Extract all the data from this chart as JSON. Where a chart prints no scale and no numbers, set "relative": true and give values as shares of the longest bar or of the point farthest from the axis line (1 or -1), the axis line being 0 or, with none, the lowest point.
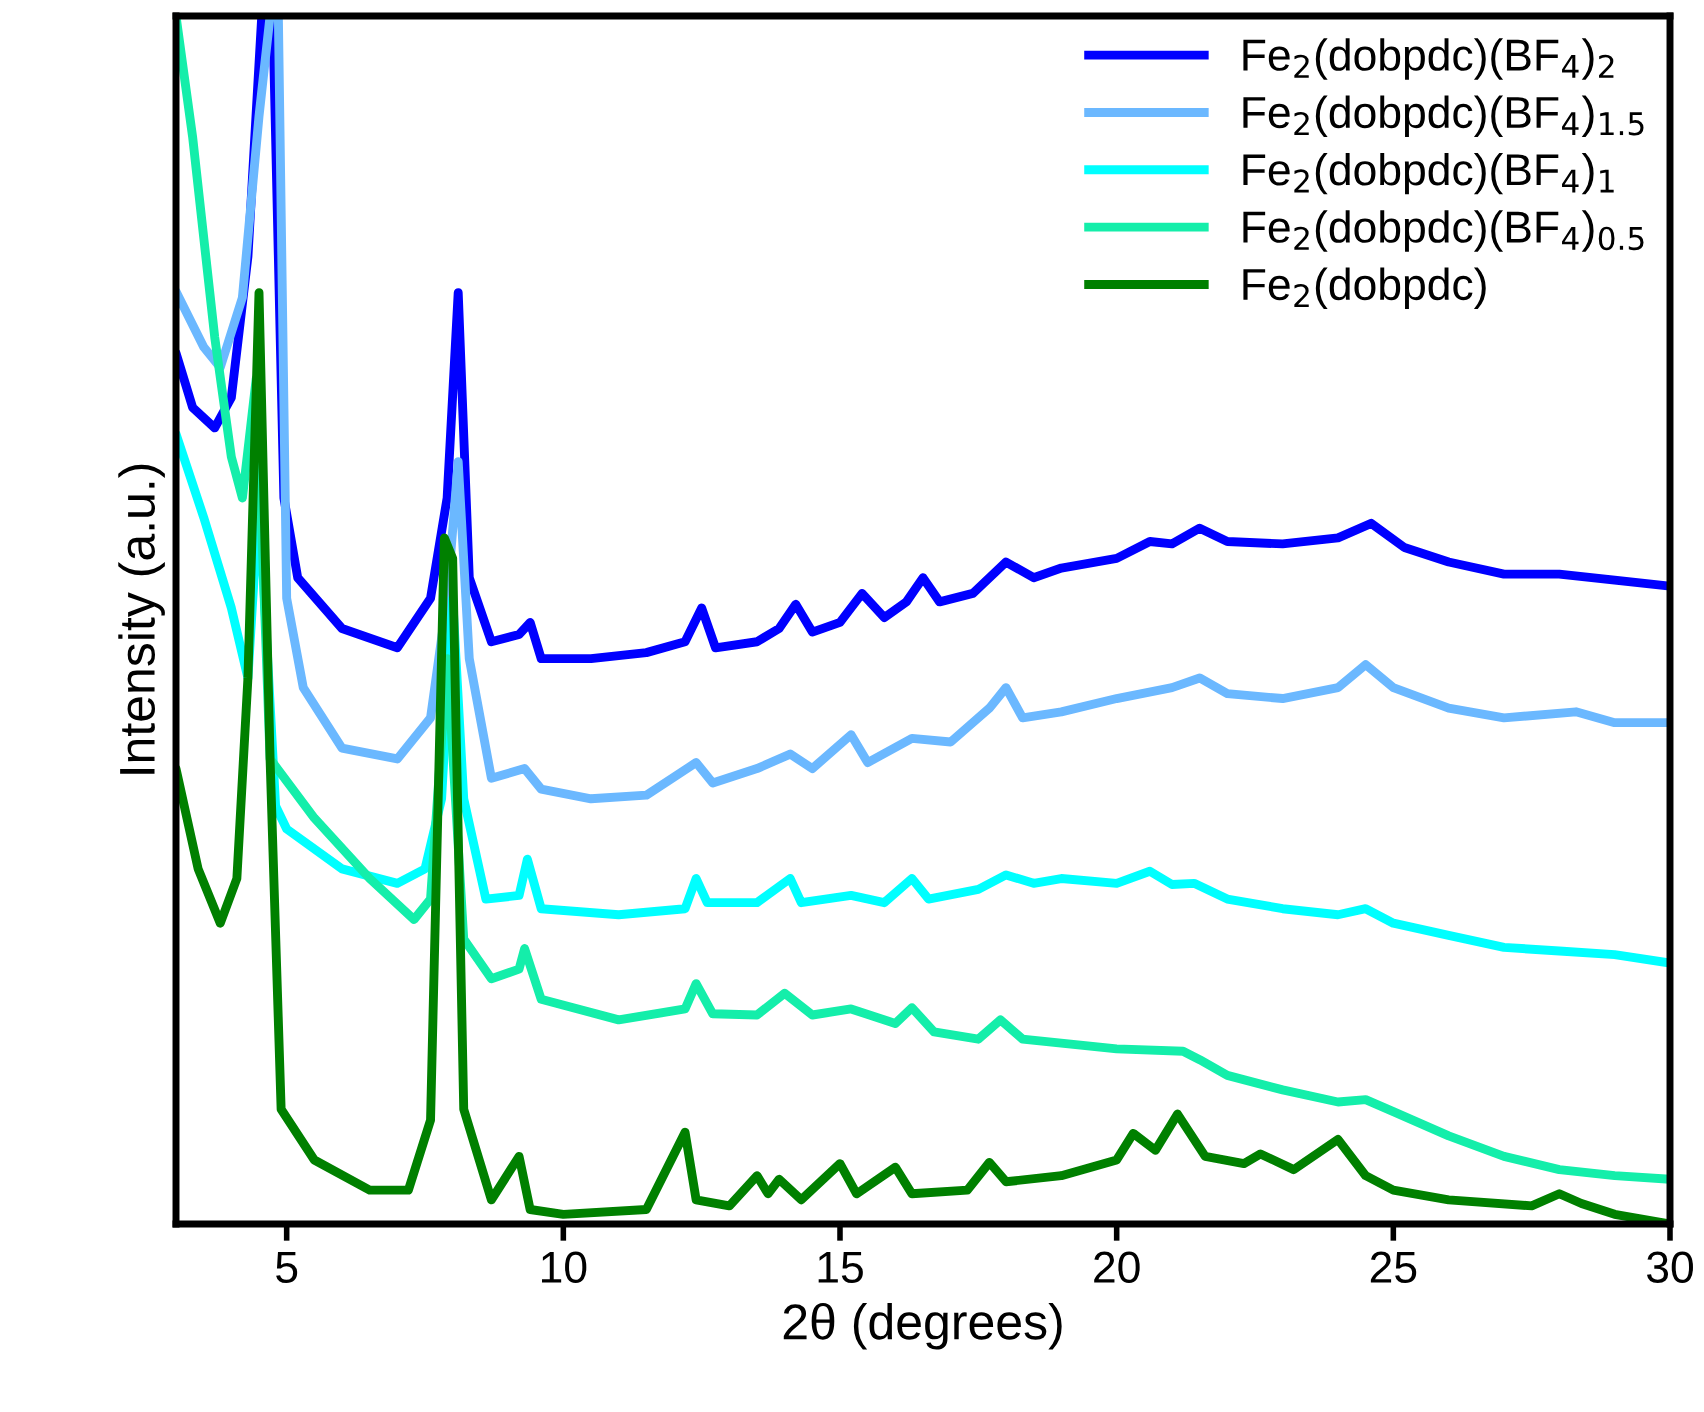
{
  "chart_data": {
    "type": "line",
    "relative": true,
    "xlabel": "2θ (degrees)",
    "ylabel": "Intensity (a.u.)",
    "xlim": [
      3,
      30
    ],
    "xticks": [
      5,
      10,
      15,
      20,
      25,
      30
    ],
    "tick_labels": "x",
    "grid": false,
    "legend": "top right",
    "marker": "none",
    "line_style": "solid",
    "series": [
      {
        "name": "Fe$_{2}$(dobpdc)(BF$_{4}$)$_{2}$",
        "color": "#0000ff",
        "x": [
          3,
          3.3,
          3.7,
          4.0,
          4.3,
          4.55,
          4.75,
          4.95,
          5.2,
          6,
          7,
          7.6,
          7.9,
          8.1,
          8.3,
          8.7,
          9.2,
          9.4,
          9.6,
          10.5,
          11.5,
          12.2,
          12.5,
          12.75,
          13.5,
          13.9,
          14.2,
          14.5,
          15.0,
          15.4,
          15.8,
          16.2,
          16.5,
          16.8,
          17.4,
          18.0,
          18.5,
          19,
          20,
          20.6,
          21,
          21.5,
          22,
          23,
          24,
          24.6,
          25.2,
          26,
          27,
          28,
          29,
          30
        ],
        "values": [
          0.721,
          0.676,
          0.659,
          0.684,
          0.801,
          1,
          1,
          0.601,
          0.535,
          0.493,
          0.477,
          0.518,
          0.601,
          0.771,
          0.535,
          0.482,
          0.488,
          0.498,
          0.468,
          0.468,
          0.473,
          0.482,
          0.51,
          0.477,
          0.482,
          0.493,
          0.513,
          0.49,
          0.498,
          0.522,
          0.502,
          0.515,
          0.535,
          0.515,
          0.522,
          0.548,
          0.535,
          0.543,
          0.551,
          0.565,
          0.563,
          0.576,
          0.565,
          0.563,
          0.568,
          0.58,
          0.56,
          0.548,
          0.538,
          0.538,
          0.533,
          0.528
        ]
      },
      {
        "name": "Fe$_{2}$(dobpdc)(BF$_{4}$)$_{1.5}$",
        "color": "#6bb8ff",
        "x": [
          3,
          3.5,
          3.8,
          4.2,
          4.5,
          4.7,
          4.85,
          5.0,
          5.3,
          6,
          7,
          7.6,
          7.9,
          8.1,
          8.3,
          8.7,
          9.3,
          9.6,
          10.5,
          11.5,
          12.4,
          12.7,
          13.5,
          14.1,
          14.5,
          15.2,
          15.5,
          16.3,
          17,
          17.7,
          18,
          18.3,
          19,
          20,
          21,
          21.5,
          22,
          23,
          24,
          24.5,
          25,
          26,
          27,
          28.3,
          29,
          30
        ],
        "values": [
          0.772,
          0.726,
          0.709,
          0.767,
          0.917,
          1,
          1,
          0.518,
          0.444,
          0.394,
          0.385,
          0.419,
          0.518,
          0.631,
          0.468,
          0.369,
          0.377,
          0.36,
          0.352,
          0.355,
          0.382,
          0.365,
          0.377,
          0.389,
          0.377,
          0.405,
          0.382,
          0.402,
          0.399,
          0.427,
          0.444,
          0.419,
          0.424,
          0.435,
          0.444,
          0.452,
          0.439,
          0.435,
          0.444,
          0.463,
          0.444,
          0.427,
          0.419,
          0.424,
          0.415,
          0.415
        ]
      },
      {
        "name": "Fe$_{2}$(dobpdc)(BF$_{4}$)$_{1}$",
        "color": "#00ffff",
        "x": [
          3,
          3.5,
          4.0,
          4.3,
          4.5,
          4.8,
          5.0,
          6,
          7,
          7.5,
          7.8,
          8.0,
          8.2,
          8.6,
          9.2,
          9.35,
          9.6,
          11,
          12.2,
          12.4,
          12.6,
          13.5,
          14.1,
          14.3,
          15.2,
          15.8,
          16.3,
          16.6,
          17.5,
          18,
          18.5,
          19,
          20,
          20.6,
          21,
          21.4,
          22,
          23,
          24,
          24.5,
          25,
          26,
          27,
          28,
          29,
          30
        ],
        "values": [
          0.654,
          0.585,
          0.51,
          0.452,
          0.601,
          0.346,
          0.327,
          0.294,
          0.282,
          0.294,
          0.352,
          0.518,
          0.352,
          0.269,
          0.272,
          0.302,
          0.261,
          0.256,
          0.261,
          0.286,
          0.266,
          0.266,
          0.286,
          0.266,
          0.272,
          0.266,
          0.286,
          0.269,
          0.277,
          0.289,
          0.282,
          0.286,
          0.282,
          0.292,
          0.281,
          0.282,
          0.269,
          0.261,
          0.256,
          0.261,
          0.249,
          0.239,
          0.229,
          0.226,
          0.223,
          0.216
        ]
      },
      {
        "name": "Fe$_{2}$(dobpdc)(BF$_{4}$)$_{0.5}$",
        "color": "#14eeaa",
        "x": [
          3,
          3.3,
          3.7,
          4.0,
          4.2,
          4.45,
          4.7,
          5.5,
          6.5,
          7.3,
          7.6,
          7.9,
          8.2,
          8.7,
          9.2,
          9.3,
          9.6,
          11,
          12.2,
          12.4,
          12.7,
          13.5,
          14.0,
          14.5,
          15.2,
          16,
          16.3,
          16.7,
          17.5,
          17.9,
          18.3,
          20,
          21.2,
          21.5,
          22,
          23,
          24,
          24.5,
          25,
          26,
          27,
          28,
          29,
          30
        ],
        "values": [
          1,
          0.9,
          0.734,
          0.635,
          0.601,
          0.7,
          0.385,
          0.336,
          0.286,
          0.252,
          0.269,
          0.468,
          0.236,
          0.203,
          0.211,
          0.228,
          0.186,
          0.169,
          0.178,
          0.199,
          0.174,
          0.173,
          0.191,
          0.173,
          0.178,
          0.166,
          0.179,
          0.159,
          0.153,
          0.169,
          0.153,
          0.145,
          0.143,
          0.136,
          0.123,
          0.111,
          0.101,
          0.103,
          0.093,
          0.073,
          0.056,
          0.045,
          0.04,
          0.037
        ]
      },
      {
        "name": "Fe$_{2}$(dobpdc)",
        "color": "#008000",
        "x": [
          3,
          3.4,
          3.8,
          4.1,
          4.3,
          4.5,
          4.7,
          4.9,
          5.5,
          6.5,
          7.2,
          7.6,
          7.85,
          8.0,
          8.2,
          8.7,
          9.2,
          9.4,
          10,
          11.5,
          12.2,
          12.4,
          13,
          13.5,
          13.7,
          13.9,
          14.3,
          15.0,
          15.3,
          16.0,
          16.3,
          17.3,
          17.7,
          18,
          19,
          20,
          20.3,
          20.7,
          21.1,
          21.6,
          22.3,
          22.6,
          23.2,
          24,
          24.5,
          25,
          26,
          27.5,
          28,
          28.4,
          29,
          30
        ],
        "values": [
          0.377,
          0.294,
          0.249,
          0.286,
          0.452,
          0.771,
          0.385,
          0.095,
          0.053,
          0.028,
          0.028,
          0.086,
          0.568,
          0.551,
          0.095,
          0.02,
          0.056,
          0.012,
          0.008,
          0.012,
          0.076,
          0.02,
          0.015,
          0.04,
          0.025,
          0.037,
          0.02,
          0.05,
          0.025,
          0.047,
          0.025,
          0.028,
          0.051,
          0.035,
          0.04,
          0.053,
          0.075,
          0.061,
          0.091,
          0.056,
          0.05,
          0.058,
          0.045,
          0.07,
          0.04,
          0.028,
          0.02,
          0.015,
          0.025,
          0.017,
          0.008,
          0
        ]
      }
    ]
  }
}
